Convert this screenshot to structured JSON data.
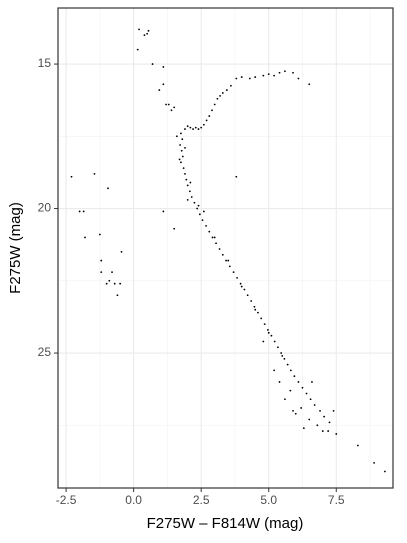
{
  "chart_data": {
    "type": "scatter",
    "xlabel": "F275W – F814W (mag)",
    "ylabel": "F275W (mag)",
    "xlim": [
      -2.8,
      9.6
    ],
    "ylim": [
      13.06,
      29.67
    ],
    "y_reversed": true,
    "xticks": [
      -2.5,
      {
        "value": 0,
        "label": "0.0"
      },
      2.5,
      {
        "value": 5,
        "label": "5.0"
      },
      7.5
    ],
    "yticks": [
      15,
      20,
      25
    ],
    "xminor": [
      -1.25,
      1.25,
      3.75,
      6.25,
      8.75
    ],
    "yminor": [
      17.5,
      22.5,
      27.5
    ],
    "grid": true,
    "color": "#000000",
    "x": [
      1.75,
      1.8,
      1.72,
      1.78,
      1.82,
      1.75,
      1.85,
      1.9,
      1.95,
      2.0,
      2.08,
      2.15,
      2.25,
      2.35,
      2.45,
      2.55,
      2.68,
      2.8,
      2.92,
      3.05,
      3.18,
      3.3,
      3.42,
      3.56,
      3.7,
      3.83,
      3.96,
      4.1,
      4.22,
      4.35,
      4.47,
      4.6,
      4.72,
      4.85,
      4.97,
      5.1,
      5.22,
      5.34,
      5.46,
      5.58,
      5.7,
      5.82,
      5.95,
      6.1,
      6.25,
      6.4,
      6.55,
      6.7,
      6.9,
      7.05,
      7.25,
      1.6,
      1.9,
      1.7,
      2.1,
      2.4,
      2.6,
      3.0,
      3.5,
      4.0,
      4.5,
      5.0,
      5.5,
      5.4,
      5.6,
      5.8,
      6.2,
      6.0,
      6.5,
      6.8,
      7.0,
      6.3,
      5.9,
      7.4,
      6.6,
      5.2,
      4.8,
      1.9,
      2.0,
      2.1,
      2.2,
      2.3,
      2.4,
      2.5,
      2.6,
      2.7,
      2.8,
      2.9,
      3.0,
      3.1,
      3.2,
      3.3,
      3.45,
      3.6,
      1.3,
      1.4,
      1.5,
      1.1,
      1.2,
      3.8,
      4.0,
      4.3,
      4.5,
      4.8,
      5.0,
      5.2,
      5.4,
      5.6,
      5.9,
      6.1,
      6.5,
      0.2,
      0.4,
      0.5,
      0.55,
      0.15,
      0.7,
      1.1,
      0.95,
      -2.3,
      -1.45,
      -0.95,
      -2.0,
      -1.85,
      -1.8,
      -1.25,
      -0.45,
      -1.2,
      -0.8,
      -0.5,
      -0.9,
      -0.7,
      -1.0,
      -0.6,
      -1.2,
      1.1,
      1.5,
      3.8,
      2.0,
      8.3,
      8.9,
      9.3,
      7.5,
      7.2
    ],
    "y": [
      17.4,
      17.6,
      17.8,
      18.0,
      18.2,
      18.4,
      18.6,
      18.8,
      19.0,
      19.2,
      19.4,
      19.6,
      19.8,
      20.0,
      20.2,
      20.4,
      20.6,
      20.8,
      21.0,
      21.2,
      21.4,
      21.6,
      21.8,
      22.0,
      22.2,
      22.4,
      22.6,
      22.8,
      23.0,
      23.2,
      23.4,
      23.6,
      23.8,
      24.0,
      24.2,
      24.4,
      24.6,
      24.8,
      25.0,
      25.2,
      25.4,
      25.6,
      25.8,
      26.0,
      26.2,
      26.4,
      26.6,
      26.8,
      27.0,
      27.2,
      27.4,
      17.5,
      17.9,
      18.3,
      19.1,
      19.9,
      20.1,
      21.0,
      21.8,
      22.7,
      23.5,
      24.3,
      25.1,
      26.0,
      26.6,
      26.3,
      26.9,
      27.1,
      27.3,
      27.5,
      27.7,
      27.6,
      27.0,
      27.0,
      26.0,
      25.6,
      24.6,
      17.25,
      17.15,
      17.2,
      17.25,
      17.2,
      17.25,
      17.2,
      17.1,
      16.95,
      16.8,
      16.6,
      16.4,
      16.2,
      16.1,
      16.0,
      15.9,
      15.75,
      16.4,
      16.6,
      16.5,
      15.7,
      16.4,
      15.5,
      15.45,
      15.5,
      15.45,
      15.4,
      15.35,
      15.4,
      15.3,
      15.25,
      15.3,
      15.5,
      15.7,
      13.8,
      14.0,
      13.95,
      13.85,
      14.5,
      15.0,
      15.1,
      15.9,
      18.9,
      18.8,
      19.3,
      20.1,
      20.1,
      21.0,
      20.9,
      21.5,
      22.2,
      22.2,
      22.6,
      22.5,
      22.6,
      22.6,
      23.0,
      21.8,
      20.1,
      20.7,
      18.9,
      19.7,
      28.2,
      28.8,
      29.1,
      27.8,
      27.7
    ]
  }
}
